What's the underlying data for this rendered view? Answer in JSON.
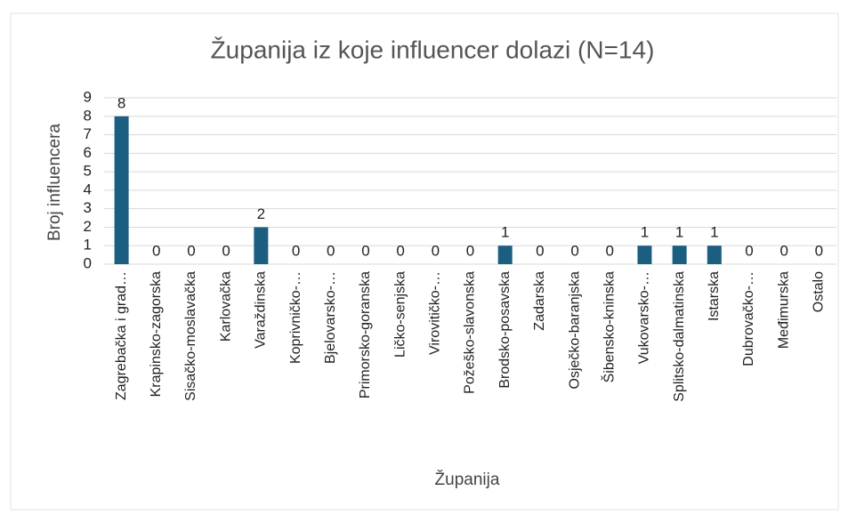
{
  "chart_data": {
    "type": "bar",
    "title": "Županija iz koje influencer dolazi (N=14)",
    "x_label": "Županija",
    "y_label": "Broj influencera",
    "categories": [
      "Zagrebačka i grad…",
      "Krapinsko-zagorska",
      "Sisačko-moslavačka",
      "Karlovačka",
      "Varaždinska",
      "Koprivničko-…",
      "Bjelovarsko-…",
      "Primorsko-goranska",
      "Ličko-senjska",
      "Virovitičko-…",
      "Požeško-slavonska",
      "Brodsko-posavska",
      "Zadarska",
      "Osječko-baranjska",
      "Šibensko-kninska",
      "Vukovarsko-…",
      "Splitsko-dalmatinska",
      "Istarska",
      "Dubrovačko-…",
      "Međimurska",
      "Ostalo"
    ],
    "values": [
      8,
      0,
      0,
      0,
      2,
      0,
      0,
      0,
      0,
      0,
      0,
      1,
      0,
      0,
      0,
      1,
      1,
      1,
      0,
      0,
      0
    ],
    "color": "#1b5e80",
    "ylim": [
      0,
      9
    ],
    "yticks": [
      0,
      1,
      2,
      3,
      4,
      5,
      6,
      7,
      8,
      9
    ],
    "grid": true
  }
}
